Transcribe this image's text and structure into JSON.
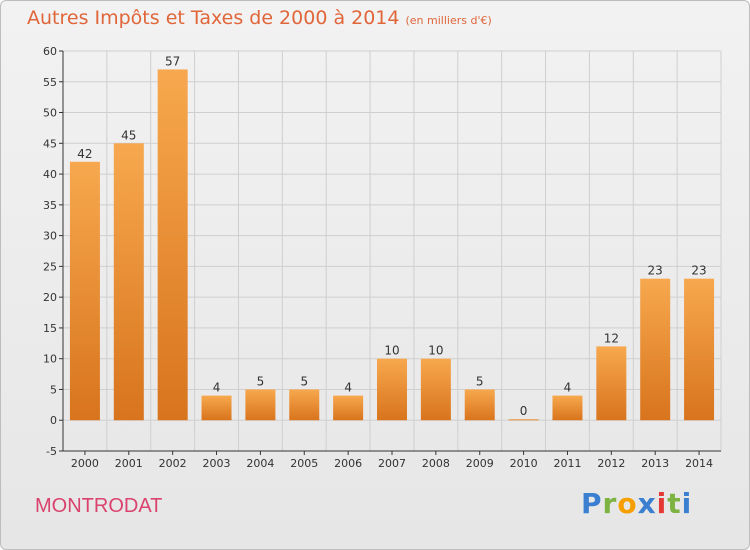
{
  "header": {
    "title": "Autres Impôts et Taxes de 2000 à 2014",
    "unit": "(en milliers d'€)"
  },
  "footer": {
    "city": "MONTRODAT"
  },
  "logo": {
    "letters": [
      "P",
      "r",
      "o",
      "x",
      "i",
      "t",
      "i"
    ],
    "colors": [
      "#3a7fd0",
      "#7cb342",
      "#f5a000",
      "#3a7fd0",
      "#e53935",
      "#7cb342",
      "#3a7fd0"
    ]
  },
  "colors": {
    "bar_top": "#f7a84e",
    "bar_bottom": "#d8741d",
    "grid": "#cfcfcf",
    "axis": "#333333"
  },
  "chart_data": {
    "type": "bar",
    "title": "Autres Impôts et Taxes de 2000 à 2014",
    "xlabel": "",
    "ylabel": "",
    "categories": [
      "2000",
      "2001",
      "2002",
      "2003",
      "2004",
      "2005",
      "2006",
      "2007",
      "2008",
      "2009",
      "2010",
      "2011",
      "2012",
      "2013",
      "2014"
    ],
    "values": [
      42,
      45,
      57,
      4,
      5,
      5,
      4,
      10,
      10,
      5,
      0,
      4,
      12,
      23,
      23
    ],
    "ylim": [
      -5,
      60
    ],
    "yticks": [
      -5,
      0,
      5,
      10,
      15,
      20,
      25,
      30,
      35,
      40,
      45,
      50,
      55,
      60
    ],
    "grid": true,
    "legend": "none"
  }
}
